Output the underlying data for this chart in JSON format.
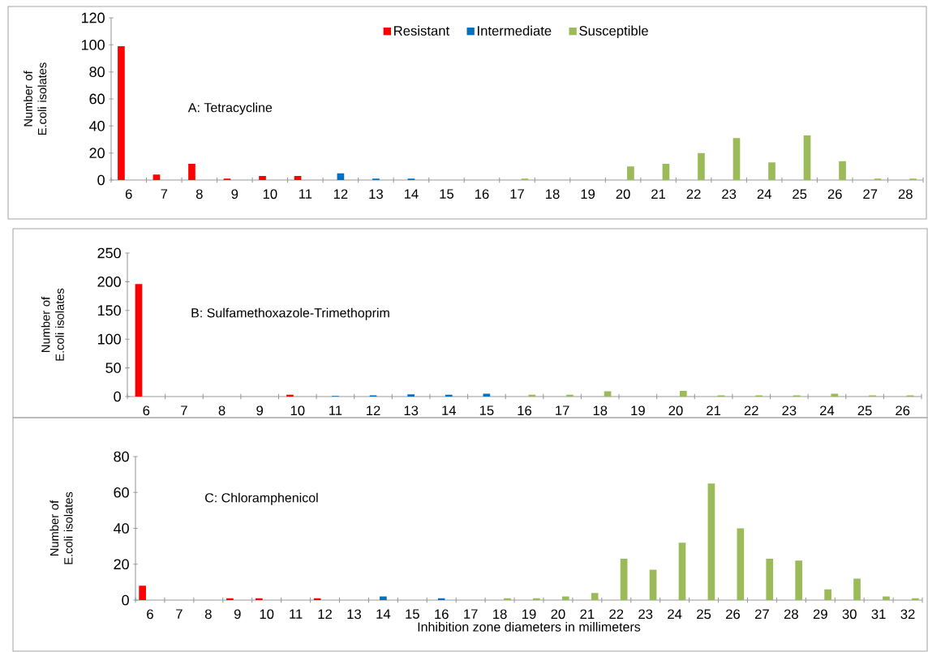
{
  "chart_data": [
    {
      "type": "bar",
      "title": "A: Tetracycline",
      "ylabel": "Number of E.coli isolates",
      "legend": "top",
      "categories": [
        "6",
        "7",
        "8",
        "9",
        "10",
        "11",
        "12",
        "13",
        "14",
        "15",
        "16",
        "17",
        "18",
        "19",
        "20",
        "21",
        "22",
        "23",
        "24",
        "25",
        "26",
        "27",
        "28"
      ],
      "series": [
        {
          "name": "Resistant",
          "color": "#ff0000",
          "values": [
            99,
            4,
            12,
            1,
            3,
            3,
            null,
            null,
            null,
            null,
            null,
            null,
            null,
            null,
            null,
            null,
            null,
            null,
            null,
            null,
            null,
            null,
            null
          ]
        },
        {
          "name": "Intermediate",
          "color": "#0070c0",
          "values": [
            null,
            null,
            null,
            null,
            null,
            null,
            5,
            1,
            1,
            null,
            null,
            null,
            null,
            null,
            null,
            null,
            null,
            null,
            null,
            null,
            null,
            null,
            null
          ]
        },
        {
          "name": "Susceptible",
          "color": "#9bbb59",
          "values": [
            null,
            null,
            null,
            null,
            null,
            null,
            null,
            null,
            null,
            null,
            null,
            1,
            null,
            null,
            10,
            12,
            20,
            31,
            13,
            33,
            14,
            1,
            1
          ]
        }
      ],
      "ylim": [
        0,
        120
      ],
      "yticks": [
        0,
        20,
        40,
        60,
        80,
        100,
        120
      ]
    },
    {
      "type": "bar",
      "title": "B: Sulfamethoxazole-Trimethoprim",
      "ylabel": "Number of E.coli isolates",
      "categories": [
        "6",
        "7",
        "8",
        "9",
        "10",
        "11",
        "12",
        "13",
        "14",
        "15",
        "16",
        "17",
        "18",
        "19",
        "20",
        "21",
        "22",
        "23",
        "24",
        "25",
        "26"
      ],
      "series": [
        {
          "color": "#ff0000",
          "values": [
            196,
            null,
            null,
            null,
            3,
            null,
            null,
            null,
            null,
            null,
            null,
            null,
            null,
            null,
            null,
            null,
            null,
            null,
            null,
            null,
            null
          ]
        },
        {
          "color": "#0070c0",
          "values": [
            null,
            null,
            null,
            null,
            null,
            1,
            2,
            4,
            3,
            5,
            null,
            null,
            null,
            null,
            null,
            null,
            null,
            null,
            null,
            null,
            null
          ]
        },
        {
          "color": "#9bbb59",
          "values": [
            null,
            null,
            null,
            null,
            null,
            null,
            null,
            null,
            null,
            null,
            3,
            3,
            9,
            null,
            10,
            2,
            2,
            2,
            5,
            2,
            2
          ]
        }
      ],
      "ylim": [
        0,
        250
      ],
      "yticks": [
        0,
        50,
        100,
        150,
        200,
        250
      ]
    },
    {
      "type": "bar",
      "title": "C: Chloramphenicol",
      "ylabel": "Number of E.coli isolates",
      "xlabel": "Inhibition zone diameters  in millimeters",
      "categories": [
        "6",
        "7",
        "8",
        "9",
        "10",
        "11",
        "12",
        "13",
        "14",
        "15",
        "16",
        "17",
        "18",
        "19",
        "20",
        "21",
        "22",
        "23",
        "24",
        "25",
        "26",
        "27",
        "28",
        "29",
        "30",
        "31",
        "32"
      ],
      "series": [
        {
          "color": "#ff0000",
          "values": [
            8,
            null,
            null,
            1,
            1,
            null,
            1,
            null,
            null,
            null,
            null,
            null,
            null,
            null,
            null,
            null,
            null,
            null,
            null,
            null,
            null,
            null,
            null,
            null,
            null,
            null,
            null
          ]
        },
        {
          "color": "#0070c0",
          "values": [
            null,
            null,
            null,
            null,
            null,
            null,
            null,
            null,
            2,
            null,
            1,
            null,
            null,
            null,
            null,
            null,
            null,
            null,
            null,
            null,
            null,
            null,
            null,
            null,
            null,
            null,
            null
          ]
        },
        {
          "color": "#9bbb59",
          "values": [
            null,
            null,
            null,
            null,
            null,
            null,
            null,
            null,
            null,
            null,
            null,
            null,
            1,
            1,
            2,
            4,
            23,
            17,
            32,
            65,
            40,
            23,
            22,
            6,
            12,
            2,
            1
          ]
        }
      ],
      "ylim": [
        0,
        80
      ],
      "yticks": [
        0,
        20,
        40,
        60,
        80
      ]
    }
  ]
}
